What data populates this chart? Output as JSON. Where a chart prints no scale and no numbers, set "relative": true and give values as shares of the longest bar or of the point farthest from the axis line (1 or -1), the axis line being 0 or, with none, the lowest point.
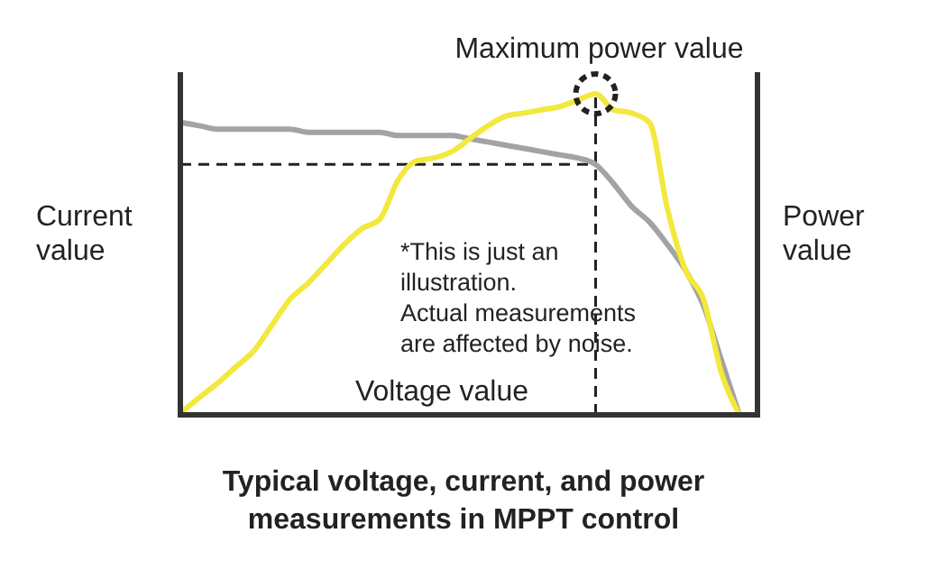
{
  "chart_data": {
    "type": "line",
    "relative": true,
    "title": "Typical voltage, current, and power\nmeasurements in MPPT control",
    "xlabel": "Voltage value",
    "ylabel": "Current\nvalue",
    "y2label": "Power\nvalue",
    "categories": [
      null,
      null,
      null,
      null,
      null,
      null,
      null,
      null,
      null,
      null,
      null,
      null,
      null,
      null,
      null,
      null,
      null,
      null,
      null,
      null,
      null,
      null,
      null,
      null,
      null,
      null,
      null,
      null,
      null,
      null,
      null,
      null
    ],
    "series": [
      {
        "color": "#a3a3a3",
        "values": [
          0.91,
          0.9,
          0.89,
          0.89,
          0.89,
          0.89,
          0.89,
          0.88,
          0.88,
          0.88,
          0.88,
          0.88,
          0.87,
          0.87,
          0.87,
          0.87,
          0.86,
          0.85,
          0.84,
          0.83,
          0.82,
          0.81,
          0.8,
          0.78,
          0.72,
          0.65,
          0.6,
          0.53,
          0.45,
          0.34,
          0.17,
          0
        ]
      },
      {
        "color": "#f3e83c",
        "values": [
          0.01,
          0.056,
          0.1,
          0.15,
          0.2,
          0.28,
          0.36,
          0.41,
          0.47,
          0.53,
          0.58,
          0.61,
          0.73,
          0.79,
          0.8,
          0.82,
          0.86,
          0.9,
          0.93,
          0.94,
          0.95,
          0.96,
          0.98,
          1,
          0.95,
          0.94,
          0.91,
          0.64,
          0.45,
          0.36,
          0.13,
          0
        ]
      }
    ],
    "ref_lines": [
      {
        "axis": "y",
        "value": 0.78,
        "line_style": "dashed",
        "color": "#222222"
      }
    ],
    "annotations": [
      "Maximum power value",
      "*This is just an\nillustration.\nActual measurements\nare affected by noise."
    ],
    "grid": false
  }
}
